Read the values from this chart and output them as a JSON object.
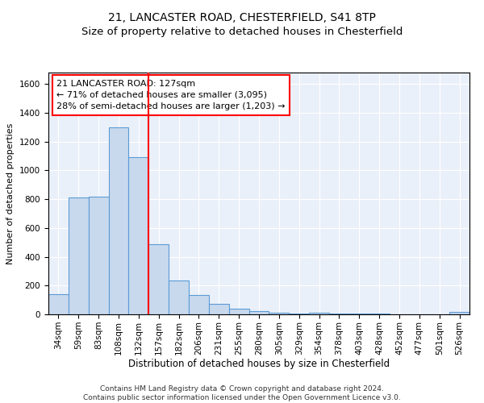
{
  "title1": "21, LANCASTER ROAD, CHESTERFIELD, S41 8TP",
  "title2": "Size of property relative to detached houses in Chesterfield",
  "xlabel": "Distribution of detached houses by size in Chesterfield",
  "ylabel": "Number of detached properties",
  "categories": [
    "34sqm",
    "59sqm",
    "83sqm",
    "108sqm",
    "132sqm",
    "157sqm",
    "182sqm",
    "206sqm",
    "231sqm",
    "255sqm",
    "280sqm",
    "305sqm",
    "329sqm",
    "354sqm",
    "378sqm",
    "403sqm",
    "428sqm",
    "452sqm",
    "477sqm",
    "501sqm",
    "526sqm"
  ],
  "values": [
    140,
    810,
    815,
    1300,
    1090,
    490,
    235,
    135,
    75,
    40,
    25,
    12,
    8,
    10,
    5,
    5,
    3,
    2,
    2,
    2,
    15
  ],
  "bar_color": "#c8d9ee",
  "bar_edge_color": "#5b9bd5",
  "vline_color": "red",
  "vline_pos": 4.5,
  "annotation_text": "21 LANCASTER ROAD: 127sqm\n← 71% of detached houses are smaller (3,095)\n28% of semi-detached houses are larger (1,203) →",
  "ylim": [
    0,
    1680
  ],
  "yticks": [
    0,
    200,
    400,
    600,
    800,
    1000,
    1200,
    1400,
    1600
  ],
  "bg_color": "#eaf0f9",
  "grid_color": "white",
  "footer": "Contains HM Land Registry data © Crown copyright and database right 2024.\nContains public sector information licensed under the Open Government Licence v3.0.",
  "title1_fontsize": 10,
  "title2_fontsize": 9.5,
  "xlabel_fontsize": 8.5,
  "ylabel_fontsize": 8,
  "tick_fontsize": 7.5,
  "annotation_fontsize": 8,
  "footer_fontsize": 6.5
}
